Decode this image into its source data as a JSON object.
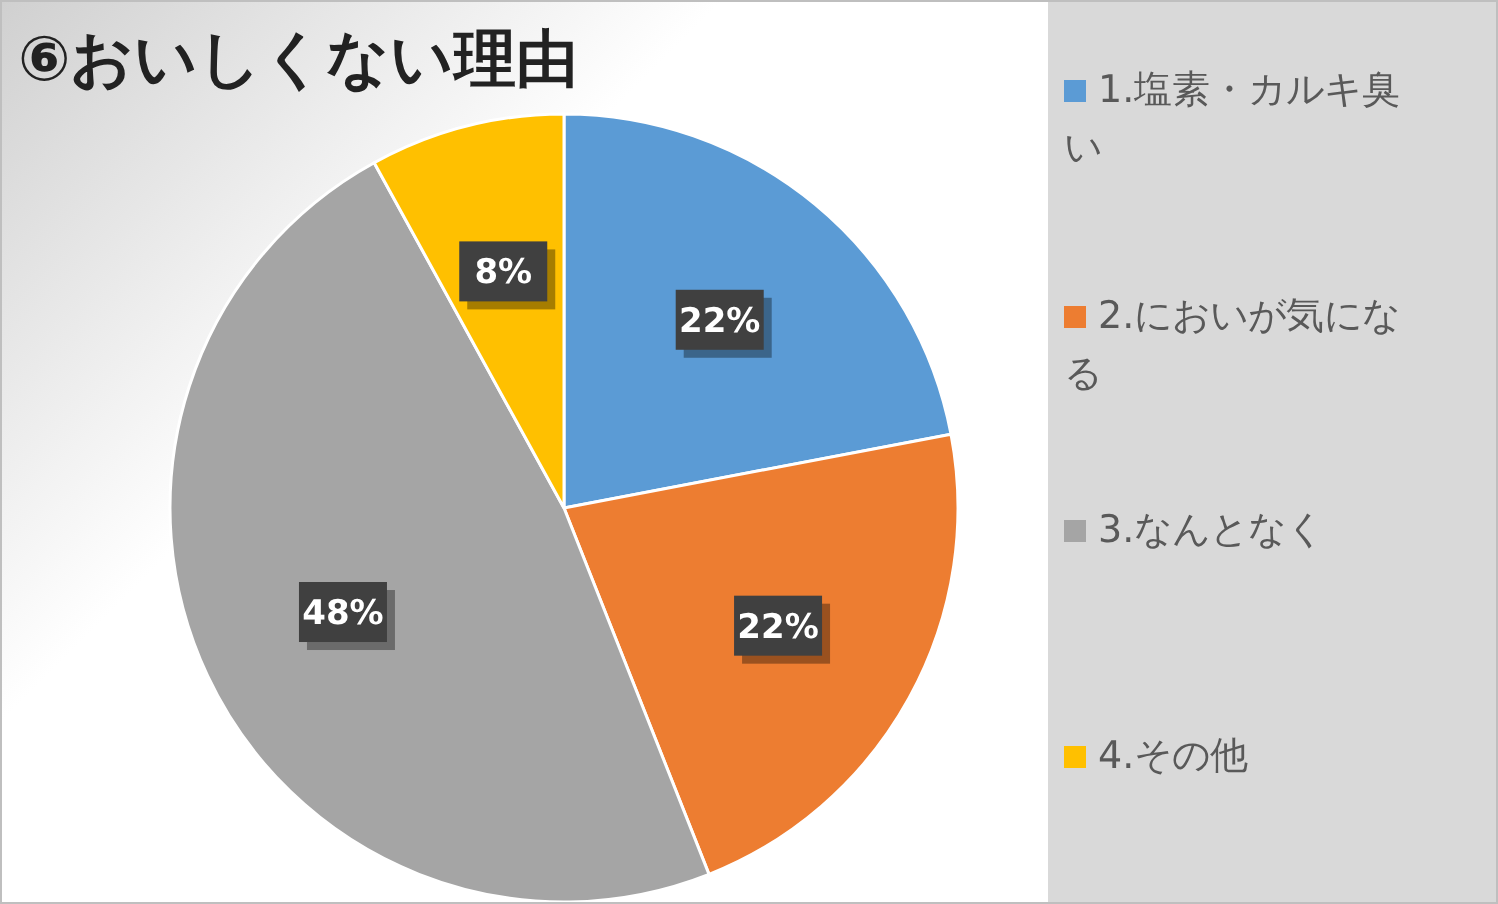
{
  "chart_data": {
    "type": "pie",
    "title": "⑥おいしくない理由",
    "categories": [
      "1.塩素・カルキ臭い",
      "2.においが気になる",
      "3.なんとなく",
      "4.その他"
    ],
    "values": [
      22,
      22,
      48,
      8
    ],
    "colors": [
      "#5b9bd5",
      "#ed7d31",
      "#a5a5a5",
      "#ffc000"
    ],
    "value_labels": [
      "22%",
      "22%",
      "48%",
      "8%"
    ],
    "legend": "right"
  }
}
